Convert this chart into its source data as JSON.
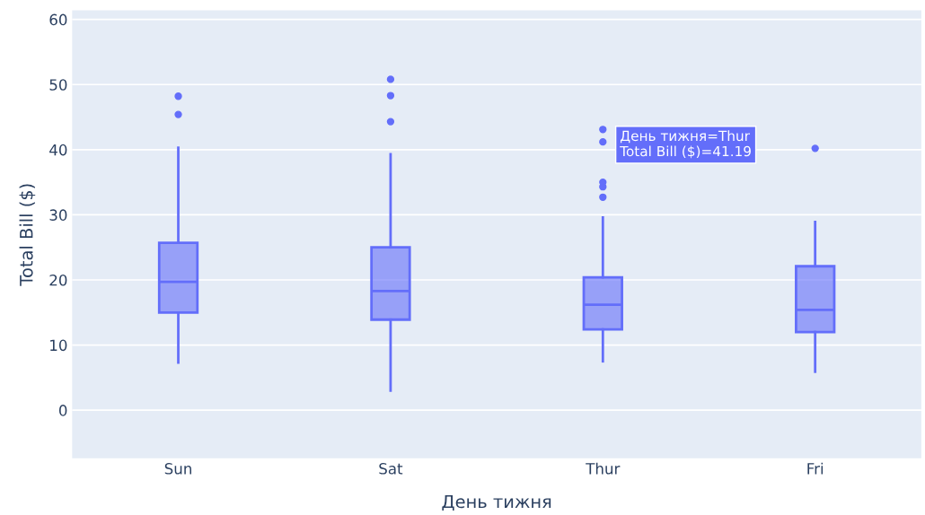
{
  "chart_data": {
    "type": "box",
    "xlabel": "День тижня",
    "ylabel": "Total Bill ($)",
    "categories": [
      "Sun",
      "Sat",
      "Thur",
      "Fri"
    ],
    "color": "#636efa",
    "boxes": [
      {
        "low": 7.3,
        "q1": 15.0,
        "median": 19.7,
        "q3": 25.7,
        "high": 40.3,
        "outliers": [
          45.4,
          48.2
        ]
      },
      {
        "low": 3.0,
        "q1": 13.9,
        "median": 18.3,
        "q3": 25.0,
        "high": 39.3,
        "outliers": [
          44.3,
          48.3,
          50.8
        ]
      },
      {
        "low": 7.5,
        "q1": 12.4,
        "median": 16.2,
        "q3": 20.4,
        "high": 29.6,
        "outliers": [
          32.7,
          34.3,
          35.0,
          41.19,
          43.1
        ]
      },
      {
        "low": 5.9,
        "q1": 12.0,
        "median": 15.4,
        "q3": 22.1,
        "high": 28.9,
        "outliers": [
          40.2
        ]
      }
    ],
    "ylim": [
      -7.4,
      61.4
    ],
    "yticks": [
      0,
      10,
      20,
      30,
      40,
      50,
      60
    ],
    "grid": "y",
    "annotations": [
      "День тижня=Thur\nTotal Bill ($)=41.19"
    ]
  }
}
